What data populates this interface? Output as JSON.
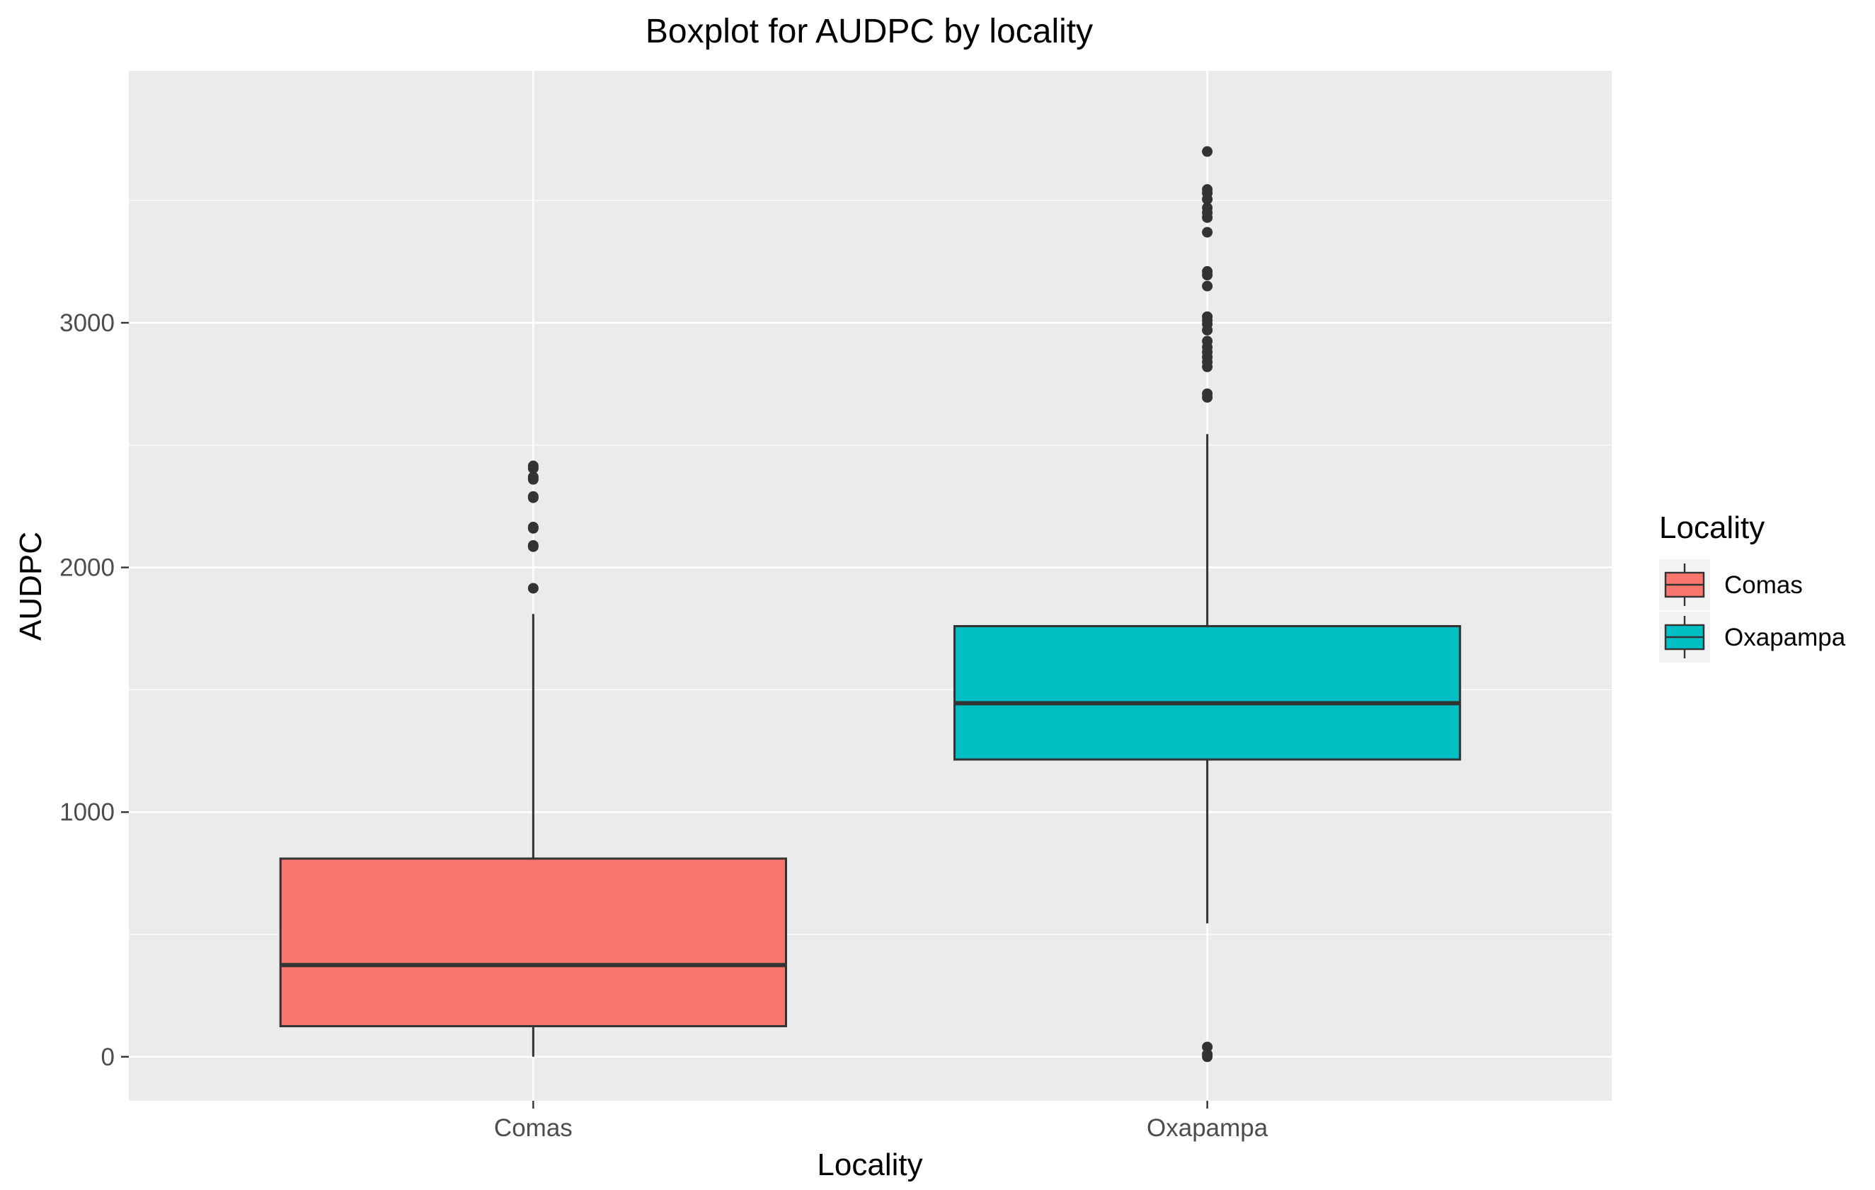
{
  "chart_data": {
    "type": "boxplot",
    "title": "Boxplot for AUDPC by locality",
    "xlabel": "Locality",
    "ylabel": "AUDPC",
    "ylim": [
      -180,
      4030
    ],
    "yticks": [
      0,
      1000,
      2000,
      3000
    ],
    "grid": true,
    "legend": {
      "title": "Locality",
      "placement": "right"
    },
    "categories": [
      "Comas",
      "Oxapampa"
    ],
    "series": [
      {
        "name": "Comas",
        "color": "#F8766D",
        "whisker_low": 0,
        "q1": 125,
        "median": 375,
        "q3": 810,
        "whisker_high": 1810,
        "outliers": [
          1915,
          2085,
          2090,
          2160,
          2165,
          2285,
          2290,
          2360,
          2370,
          2405,
          2415
        ]
      },
      {
        "name": "Oxapampa",
        "color": "#00BFC4",
        "whisker_low": 545,
        "q1": 1215,
        "median": 1445,
        "q3": 1760,
        "whisker_high": 2545,
        "outliers": [
          0,
          10,
          40,
          2695,
          2710,
          2820,
          2840,
          2860,
          2880,
          2900,
          2925,
          2970,
          2995,
          3010,
          3025,
          3150,
          3195,
          3210,
          3370,
          3430,
          3450,
          3470,
          3505,
          3530,
          3545,
          3700
        ]
      }
    ]
  }
}
